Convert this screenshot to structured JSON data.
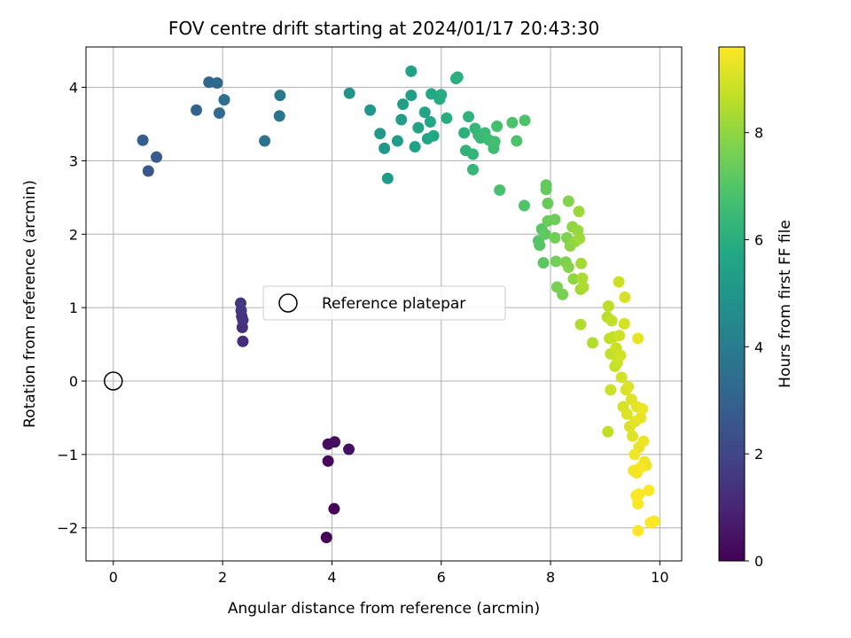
{
  "chart_data": {
    "type": "scatter",
    "title": "FOV centre drift starting at 2024/01/17 20:43:30",
    "xlabel": "Angular distance from reference (arcmin)",
    "ylabel": "Rotation from reference (arcmin)",
    "xlim": [
      -0.5,
      10.4
    ],
    "ylim": [
      -2.45,
      4.55
    ],
    "x_ticks": [
      0,
      2,
      4,
      6,
      8,
      10
    ],
    "y_ticks": [
      -2,
      -1,
      0,
      1,
      2,
      3,
      4
    ],
    "grid": true,
    "legend": {
      "placement": "center",
      "entries": [
        "Reference platepar"
      ]
    },
    "reference_point": {
      "label": "Reference platepar",
      "x": 0,
      "y": 0,
      "marker": "hollow-circle"
    },
    "colorbar": {
      "label": "Hours from first FF file",
      "colormap": "viridis",
      "range": [
        0,
        9.6
      ],
      "ticks": [
        0,
        2,
        4,
        6,
        8
      ]
    },
    "series": [
      {
        "points": [
          [
            3.9,
            -2.13,
            0.05
          ],
          [
            4.04,
            -1.74,
            0.12
          ],
          [
            3.93,
            -1.09,
            0.2
          ],
          [
            3.93,
            -0.86,
            0.28
          ],
          [
            4.05,
            -0.83,
            0.35
          ],
          [
            4.31,
            -0.93,
            0.42
          ],
          [
            2.37,
            0.54,
            1.2
          ],
          [
            2.36,
            0.73,
            1.28
          ],
          [
            2.37,
            0.83,
            1.35
          ],
          [
            2.35,
            0.88,
            1.42
          ],
          [
            2.34,
            0.96,
            1.5
          ],
          [
            2.33,
            1.06,
            1.57
          ],
          [
            0.64,
            2.86,
            2.6
          ],
          [
            0.79,
            3.05,
            2.75
          ],
          [
            0.54,
            3.28,
            2.9
          ],
          [
            1.52,
            3.69,
            3.05
          ],
          [
            1.75,
            4.07,
            3.15
          ],
          [
            1.9,
            4.06,
            3.25
          ],
          [
            1.94,
            3.65,
            3.35
          ],
          [
            2.03,
            3.83,
            3.45
          ],
          [
            2.77,
            3.27,
            3.6
          ],
          [
            3.04,
            3.61,
            3.75
          ],
          [
            3.05,
            3.89,
            3.85
          ],
          [
            4.32,
            3.92,
            4.9
          ],
          [
            4.7,
            3.69,
            5.0
          ],
          [
            4.88,
            3.37,
            5.1
          ],
          [
            4.96,
            3.17,
            5.15
          ],
          [
            5.02,
            2.76,
            5.2
          ],
          [
            5.2,
            3.27,
            5.25
          ],
          [
            5.27,
            3.56,
            5.3
          ],
          [
            5.3,
            3.77,
            5.35
          ],
          [
            5.45,
            3.89,
            5.4
          ],
          [
            5.45,
            4.22,
            5.45
          ],
          [
            5.52,
            3.19,
            5.5
          ],
          [
            5.58,
            3.45,
            5.55
          ],
          [
            5.7,
            3.66,
            5.6
          ],
          [
            5.75,
            3.3,
            5.65
          ],
          [
            5.8,
            3.53,
            5.7
          ],
          [
            5.86,
            3.34,
            5.75
          ],
          [
            5.82,
            3.91,
            5.8
          ],
          [
            5.97,
            3.84,
            5.85
          ],
          [
            6.0,
            3.9,
            5.9
          ],
          [
            6.1,
            3.58,
            5.95
          ],
          [
            6.27,
            4.12,
            6.0
          ],
          [
            6.3,
            4.14,
            6.05
          ],
          [
            6.42,
            3.38,
            6.1
          ],
          [
            6.45,
            3.14,
            6.15
          ],
          [
            6.5,
            3.6,
            6.2
          ],
          [
            6.58,
            3.09,
            6.25
          ],
          [
            6.58,
            2.88,
            6.3
          ],
          [
            6.62,
            3.44,
            6.35
          ],
          [
            6.68,
            3.35,
            6.4
          ],
          [
            6.72,
            3.31,
            6.45
          ],
          [
            6.8,
            3.38,
            6.5
          ],
          [
            6.88,
            3.28,
            6.55
          ],
          [
            6.96,
            3.17,
            6.6
          ],
          [
            6.98,
            3.26,
            6.65
          ],
          [
            7.02,
            3.47,
            6.7
          ],
          [
            7.07,
            2.6,
            6.75
          ],
          [
            7.3,
            3.52,
            6.8
          ],
          [
            7.38,
            3.27,
            6.85
          ],
          [
            7.53,
            3.55,
            6.9
          ],
          [
            7.52,
            2.39,
            6.95
          ],
          [
            7.78,
            1.91,
            7.0
          ],
          [
            7.8,
            1.85,
            7.05
          ],
          [
            7.84,
            2.07,
            7.1
          ],
          [
            7.87,
            1.61,
            7.15
          ],
          [
            7.9,
            2.0,
            7.2
          ],
          [
            7.92,
            2.61,
            7.25
          ],
          [
            7.92,
            2.67,
            7.3
          ],
          [
            7.95,
            2.42,
            7.35
          ],
          [
            7.95,
            2.18,
            7.4
          ],
          [
            8.08,
            2.2,
            7.45
          ],
          [
            8.08,
            1.95,
            7.5
          ],
          [
            8.1,
            1.63,
            7.55
          ],
          [
            8.12,
            1.28,
            7.6
          ],
          [
            8.22,
            1.18,
            7.65
          ],
          [
            8.28,
            1.62,
            7.7
          ],
          [
            8.3,
            1.95,
            7.75
          ],
          [
            8.33,
            2.45,
            7.8
          ],
          [
            8.33,
            1.55,
            7.85
          ],
          [
            8.36,
            1.84,
            7.9
          ],
          [
            8.4,
            2.1,
            7.95
          ],
          [
            8.42,
            1.39,
            8.0
          ],
          [
            8.45,
            1.9,
            8.05
          ],
          [
            8.5,
            2.05,
            8.1
          ],
          [
            8.52,
            2.31,
            8.15
          ],
          [
            8.53,
            1.94,
            8.2
          ],
          [
            8.55,
            1.25,
            8.25
          ],
          [
            8.56,
            1.6,
            8.3
          ],
          [
            8.58,
            1.4,
            8.35
          ],
          [
            8.6,
            1.28,
            8.4
          ],
          [
            8.55,
            0.77,
            8.45
          ],
          [
            8.77,
            0.52,
            8.5
          ],
          [
            9.04,
            0.87,
            8.55
          ],
          [
            9.06,
            1.02,
            8.6
          ],
          [
            9.08,
            0.58,
            8.65
          ],
          [
            9.12,
            0.82,
            8.7
          ],
          [
            9.1,
            0.37,
            8.72
          ],
          [
            9.15,
            0.6,
            8.75
          ],
          [
            9.18,
            0.2,
            8.78
          ],
          [
            9.2,
            0.45,
            8.8
          ],
          [
            9.22,
            0.25,
            8.82
          ],
          [
            9.1,
            -0.12,
            8.85
          ],
          [
            9.25,
            1.35,
            8.87
          ],
          [
            9.26,
            0.62,
            8.9
          ],
          [
            9.28,
            0.35,
            8.92
          ],
          [
            9.3,
            0.05,
            8.95
          ],
          [
            9.35,
            0.78,
            8.97
          ],
          [
            9.36,
            1.14,
            9.0
          ],
          [
            9.33,
            -0.35,
            9.02
          ],
          [
            9.38,
            -0.12,
            9.05
          ],
          [
            9.4,
            -0.45,
            9.07
          ],
          [
            9.45,
            -0.62,
            9.1
          ],
          [
            9.42,
            -0.08,
            9.12
          ],
          [
            9.48,
            -0.25,
            9.15
          ],
          [
            9.5,
            -0.75,
            9.17
          ],
          [
            9.55,
            -0.55,
            9.2
          ],
          [
            9.58,
            -0.35,
            9.22
          ],
          [
            9.6,
            0.58,
            9.25
          ],
          [
            9.62,
            -0.9,
            9.27
          ],
          [
            9.65,
            -0.5,
            9.3
          ],
          [
            9.68,
            -0.38,
            9.32
          ],
          [
            9.7,
            -0.82,
            9.35
          ],
          [
            9.72,
            -1.1,
            9.37
          ],
          [
            9.75,
            -1.15,
            9.4
          ],
          [
            9.54,
            -1.0,
            9.42
          ],
          [
            9.52,
            -1.22,
            9.45
          ],
          [
            9.58,
            -1.25,
            9.47
          ],
          [
            9.64,
            -1.18,
            9.5
          ],
          [
            9.57,
            -1.56,
            9.52
          ],
          [
            9.6,
            -1.67,
            9.54
          ],
          [
            9.62,
            -1.54,
            9.55
          ],
          [
            9.8,
            -1.49,
            9.56
          ],
          [
            9.83,
            -1.93,
            9.57
          ],
          [
            9.9,
            -1.91,
            9.58
          ],
          [
            9.6,
            -2.04,
            9.6
          ],
          [
            9.05,
            -0.69,
            8.68
          ]
        ]
      }
    ]
  }
}
